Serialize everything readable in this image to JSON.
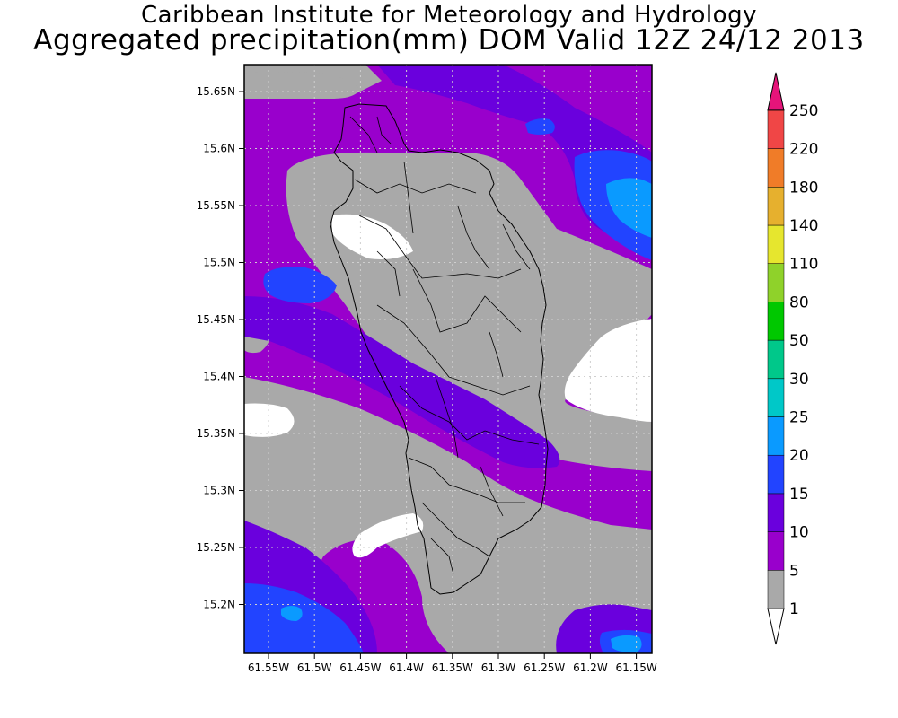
{
  "header": {
    "title_line1": "Caribbean Institute for Meteorology and Hydrology",
    "title_line2": "Aggregated precipitation(mm) DOM Valid 12Z 24/12 2013"
  },
  "map": {
    "region": "Dominica",
    "lon_ticks": [
      "61.55W",
      "61.5W",
      "61.45W",
      "61.4W",
      "61.35W",
      "61.3W",
      "61.25W",
      "61.2W",
      "61.15W"
    ],
    "lat_ticks": [
      "15.65N",
      "15.6N",
      "15.55N",
      "15.5N",
      "15.45N",
      "15.4N",
      "15.35N",
      "15.3N",
      "15.25N",
      "15.2N"
    ],
    "grid": true,
    "colors": {
      "none": "#ffffff",
      "band_1_5": "#a9a9a9",
      "band_5_10": "#9900cc",
      "band_10_15": "#6a00dd",
      "band_15_20": "#2244ff",
      "band_20_25": "#0a9aff"
    }
  },
  "colorbar": {
    "levels": [
      "1",
      "5",
      "10",
      "15",
      "20",
      "25",
      "30",
      "50",
      "80",
      "110",
      "140",
      "180",
      "220",
      "250"
    ],
    "colors": [
      "#a9a9a9",
      "#9900cc",
      "#6a00dd",
      "#2244ff",
      "#0a9aff",
      "#00c8c8",
      "#00c88a",
      "#00c800",
      "#8fd22a",
      "#e6e62e",
      "#e6b02e",
      "#f07c28",
      "#f04646",
      "#e6147a"
    ]
  }
}
